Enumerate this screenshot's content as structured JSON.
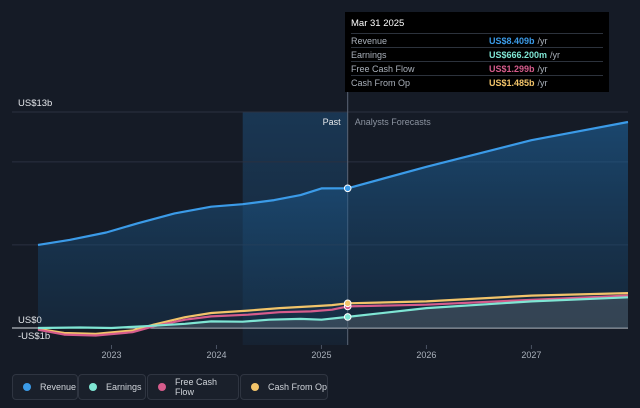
{
  "chart_data": {
    "type": "line",
    "x_ticks": [
      "2023",
      "2024",
      "2025",
      "2026",
      "2027"
    ],
    "y_labels": {
      "top": "US$13b",
      "zero": "US$0",
      "bottom": "-US$1b"
    },
    "ylim": [
      -1,
      13
    ],
    "xlim": [
      2022.3,
      2027.92
    ],
    "past_label": "Past",
    "forecast_label": "Analysts Forecasts",
    "divider_x": 2025.25,
    "highlight_start": 2024.25,
    "series": [
      {
        "name": "Revenue",
        "color": "#3b9be8",
        "area": true,
        "past": [
          [
            2022.3,
            5.0
          ],
          [
            2022.6,
            5.3
          ],
          [
            2022.95,
            5.75
          ],
          [
            2023.25,
            6.3
          ],
          [
            2023.6,
            6.9
          ],
          [
            2023.95,
            7.3
          ],
          [
            2024.25,
            7.45
          ],
          [
            2024.55,
            7.7
          ],
          [
            2024.8,
            8.0
          ],
          [
            2025.0,
            8.4
          ],
          [
            2025.25,
            8.409
          ]
        ],
        "forecast": [
          [
            2025.25,
            8.409
          ],
          [
            2026.0,
            9.7
          ],
          [
            2027.0,
            11.3
          ],
          [
            2027.92,
            12.4
          ]
        ]
      },
      {
        "name": "Earnings",
        "color": "#7fe6d4",
        "area": true,
        "past": [
          [
            2022.3,
            0.0
          ],
          [
            2022.7,
            0.03
          ],
          [
            2023.0,
            0.0
          ],
          [
            2023.3,
            0.1
          ],
          [
            2023.7,
            0.25
          ],
          [
            2023.95,
            0.4
          ],
          [
            2024.25,
            0.38
          ],
          [
            2024.5,
            0.5
          ],
          [
            2024.8,
            0.55
          ],
          [
            2025.0,
            0.5
          ],
          [
            2025.25,
            0.666
          ]
        ],
        "forecast": [
          [
            2025.25,
            0.666
          ],
          [
            2026.0,
            1.2
          ],
          [
            2027.0,
            1.6
          ],
          [
            2027.92,
            1.85
          ]
        ]
      },
      {
        "name": "Free Cash Flow",
        "color": "#d65c8c",
        "area": false,
        "past": [
          [
            2022.3,
            -0.1
          ],
          [
            2022.55,
            -0.4
          ],
          [
            2022.85,
            -0.45
          ],
          [
            2023.2,
            -0.25
          ],
          [
            2023.4,
            0.1
          ],
          [
            2023.7,
            0.5
          ],
          [
            2023.95,
            0.7
          ],
          [
            2024.3,
            0.8
          ],
          [
            2024.6,
            0.95
          ],
          [
            2024.9,
            1.0
          ],
          [
            2025.1,
            1.1
          ],
          [
            2025.25,
            1.299
          ]
        ],
        "forecast": [
          [
            2025.25,
            1.299
          ],
          [
            2026.0,
            1.4
          ],
          [
            2027.0,
            1.7
          ],
          [
            2027.92,
            1.95
          ]
        ]
      },
      {
        "name": "Cash From Op",
        "color": "#f2c46a",
        "area": false,
        "past": [
          [
            2022.3,
            -0.05
          ],
          [
            2022.55,
            -0.3
          ],
          [
            2022.85,
            -0.35
          ],
          [
            2023.2,
            -0.15
          ],
          [
            2023.4,
            0.2
          ],
          [
            2023.7,
            0.65
          ],
          [
            2023.95,
            0.9
          ],
          [
            2024.3,
            1.05
          ],
          [
            2024.6,
            1.2
          ],
          [
            2024.9,
            1.3
          ],
          [
            2025.1,
            1.38
          ],
          [
            2025.25,
            1.485
          ]
        ],
        "forecast": [
          [
            2025.25,
            1.485
          ],
          [
            2026.0,
            1.6
          ],
          [
            2027.0,
            1.95
          ],
          [
            2027.92,
            2.1
          ]
        ]
      }
    ],
    "tooltip": {
      "date": "Mar 31 2025",
      "rows": [
        {
          "label": "Revenue",
          "value": "US$8.409b",
          "unit": "/yr",
          "color": "#3b9be8"
        },
        {
          "label": "Earnings",
          "value": "US$666.200m",
          "unit": "/yr",
          "color": "#7fe6d4"
        },
        {
          "label": "Free Cash Flow",
          "value": "US$1.299b",
          "unit": "/yr",
          "color": "#d65c8c"
        },
        {
          "label": "Cash From Op",
          "value": "US$1.485b",
          "unit": "/yr",
          "color": "#f2c46a"
        }
      ]
    }
  },
  "legend": [
    {
      "label": "Revenue",
      "color": "#3b9be8"
    },
    {
      "label": "Earnings",
      "color": "#7fe6d4"
    },
    {
      "label": "Free Cash Flow",
      "color": "#d65c8c"
    },
    {
      "label": "Cash From Op",
      "color": "#f2c46a"
    }
  ]
}
